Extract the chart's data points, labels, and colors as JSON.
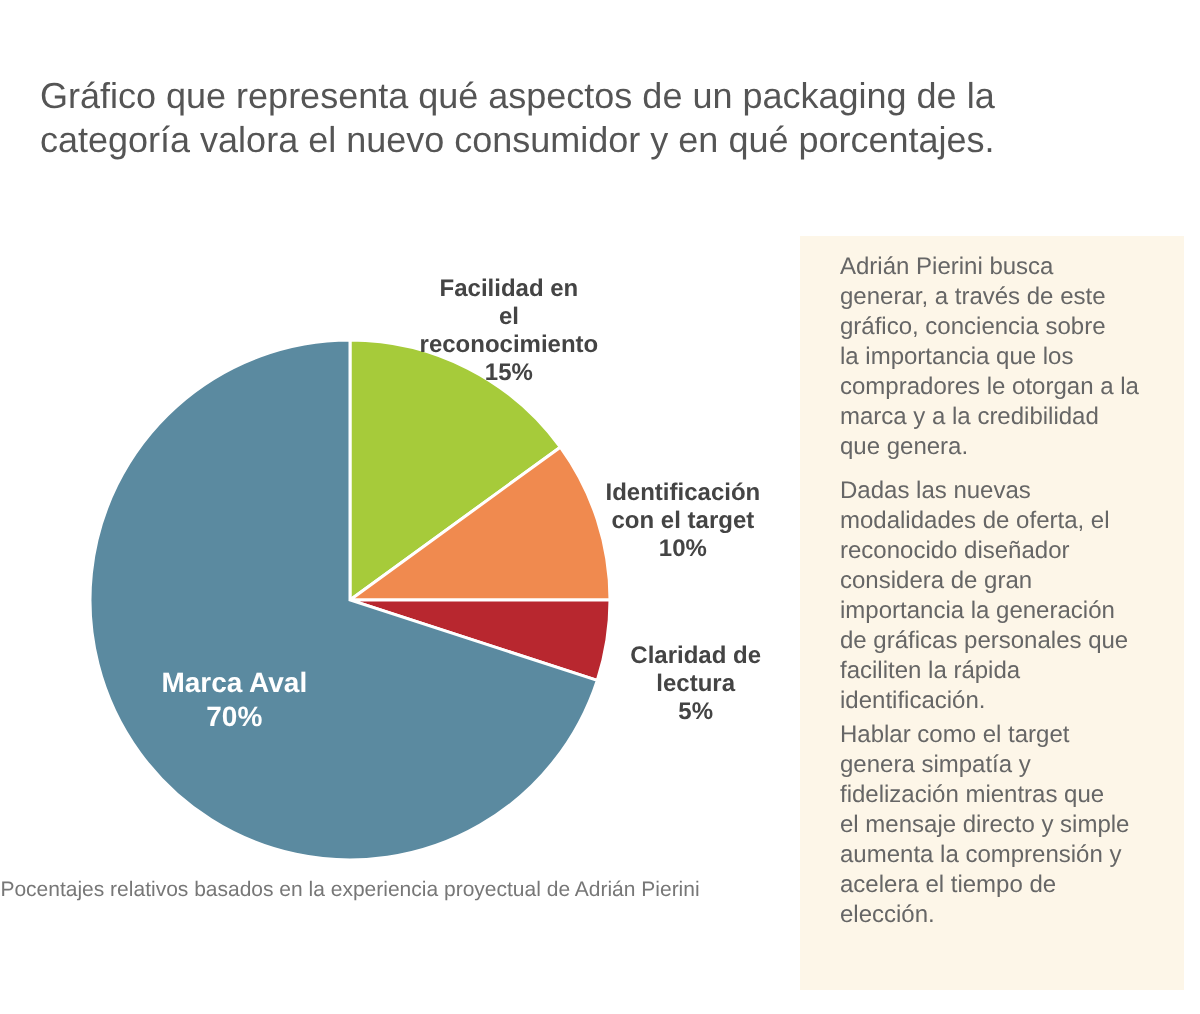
{
  "chart_data": {
    "type": "pie",
    "title": "Gráfico que representa qué aspectos de un packaging de la categoría valora el nuevo consumidor y en qué porcentajes.",
    "categories": [
      "Facilidad en el reconocimiento",
      "Identificación con el target",
      "Claridad de lectura",
      "Marca Aval"
    ],
    "values": [
      15,
      10,
      5,
      70
    ],
    "value_labels": [
      "15%",
      "10%",
      "5%",
      "70%"
    ],
    "colors": [
      "#a6cb3a",
      "#f08a4f",
      "#b8272f",
      "#5b8aa0"
    ],
    "annotations": [
      "Adrián Pierini busca generar, a través de este gráfico, conciencia sobre la importancia que los compradores le otorgan a la marca y a la credibilidad que genera.",
      "Dadas las nuevas modalidades de oferta, el reconocido diseñador considera de gran importancia la generación de gráficas  personales que faciliten la rápida identificación.",
      "Hablar como el target genera simpatía y fidelización mientras que el mensaje directo y simple aumenta la comprensión y acelera el tiempo de elección.",
      "Pocentajes relativos basados en la experiencia proyectual de Adrián Pierini"
    ]
  }
}
